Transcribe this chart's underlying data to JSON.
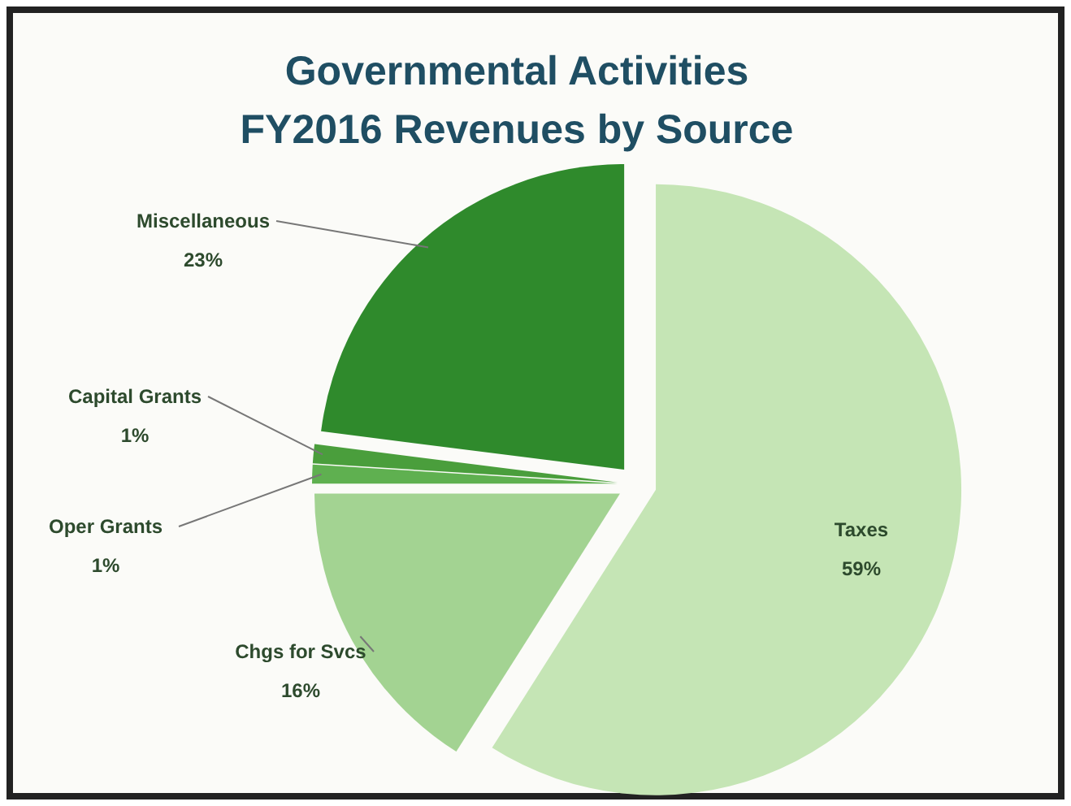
{
  "chart_data": {
    "type": "pie",
    "title": "Governmental Activities\nFY2016 Revenues by Source",
    "categories": [
      "Taxes",
      "Chgs for Svcs",
      "Oper Grants",
      "Capital Grants",
      "Miscellaneous"
    ],
    "values": [
      59,
      16,
      1,
      1,
      23
    ],
    "colors": [
      "#c5e5b5",
      "#a3d392",
      "#5fb050",
      "#4a9e3c",
      "#2f8a2c"
    ],
    "value_labels": [
      "59%",
      "16%",
      "1%",
      "1%",
      "23%"
    ]
  }
}
